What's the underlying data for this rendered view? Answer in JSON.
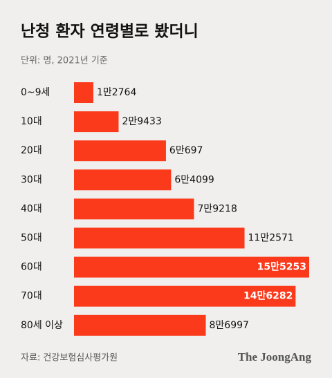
{
  "chart_data": {
    "type": "hbar",
    "title": "난청 환자 연령별로 봤더니",
    "subtitle": "단위: 명, 2021년 기준",
    "categories": [
      "0~9세",
      "10대",
      "20대",
      "30대",
      "40대",
      "50대",
      "60대",
      "70대",
      "80세 이상"
    ],
    "values": [
      12764,
      29433,
      60697,
      64099,
      79218,
      112571,
      155253,
      146282,
      86997
    ],
    "value_labels": [
      "1만2764",
      "2만9433",
      "6만697",
      "6만4099",
      "7만9218",
      "11만2571",
      "15만5253",
      "14만6282",
      "8만6997"
    ],
    "color": "#fb3a1c",
    "source": "자료: 건강보험심사평가원",
    "brand": "The JoongAng"
  }
}
